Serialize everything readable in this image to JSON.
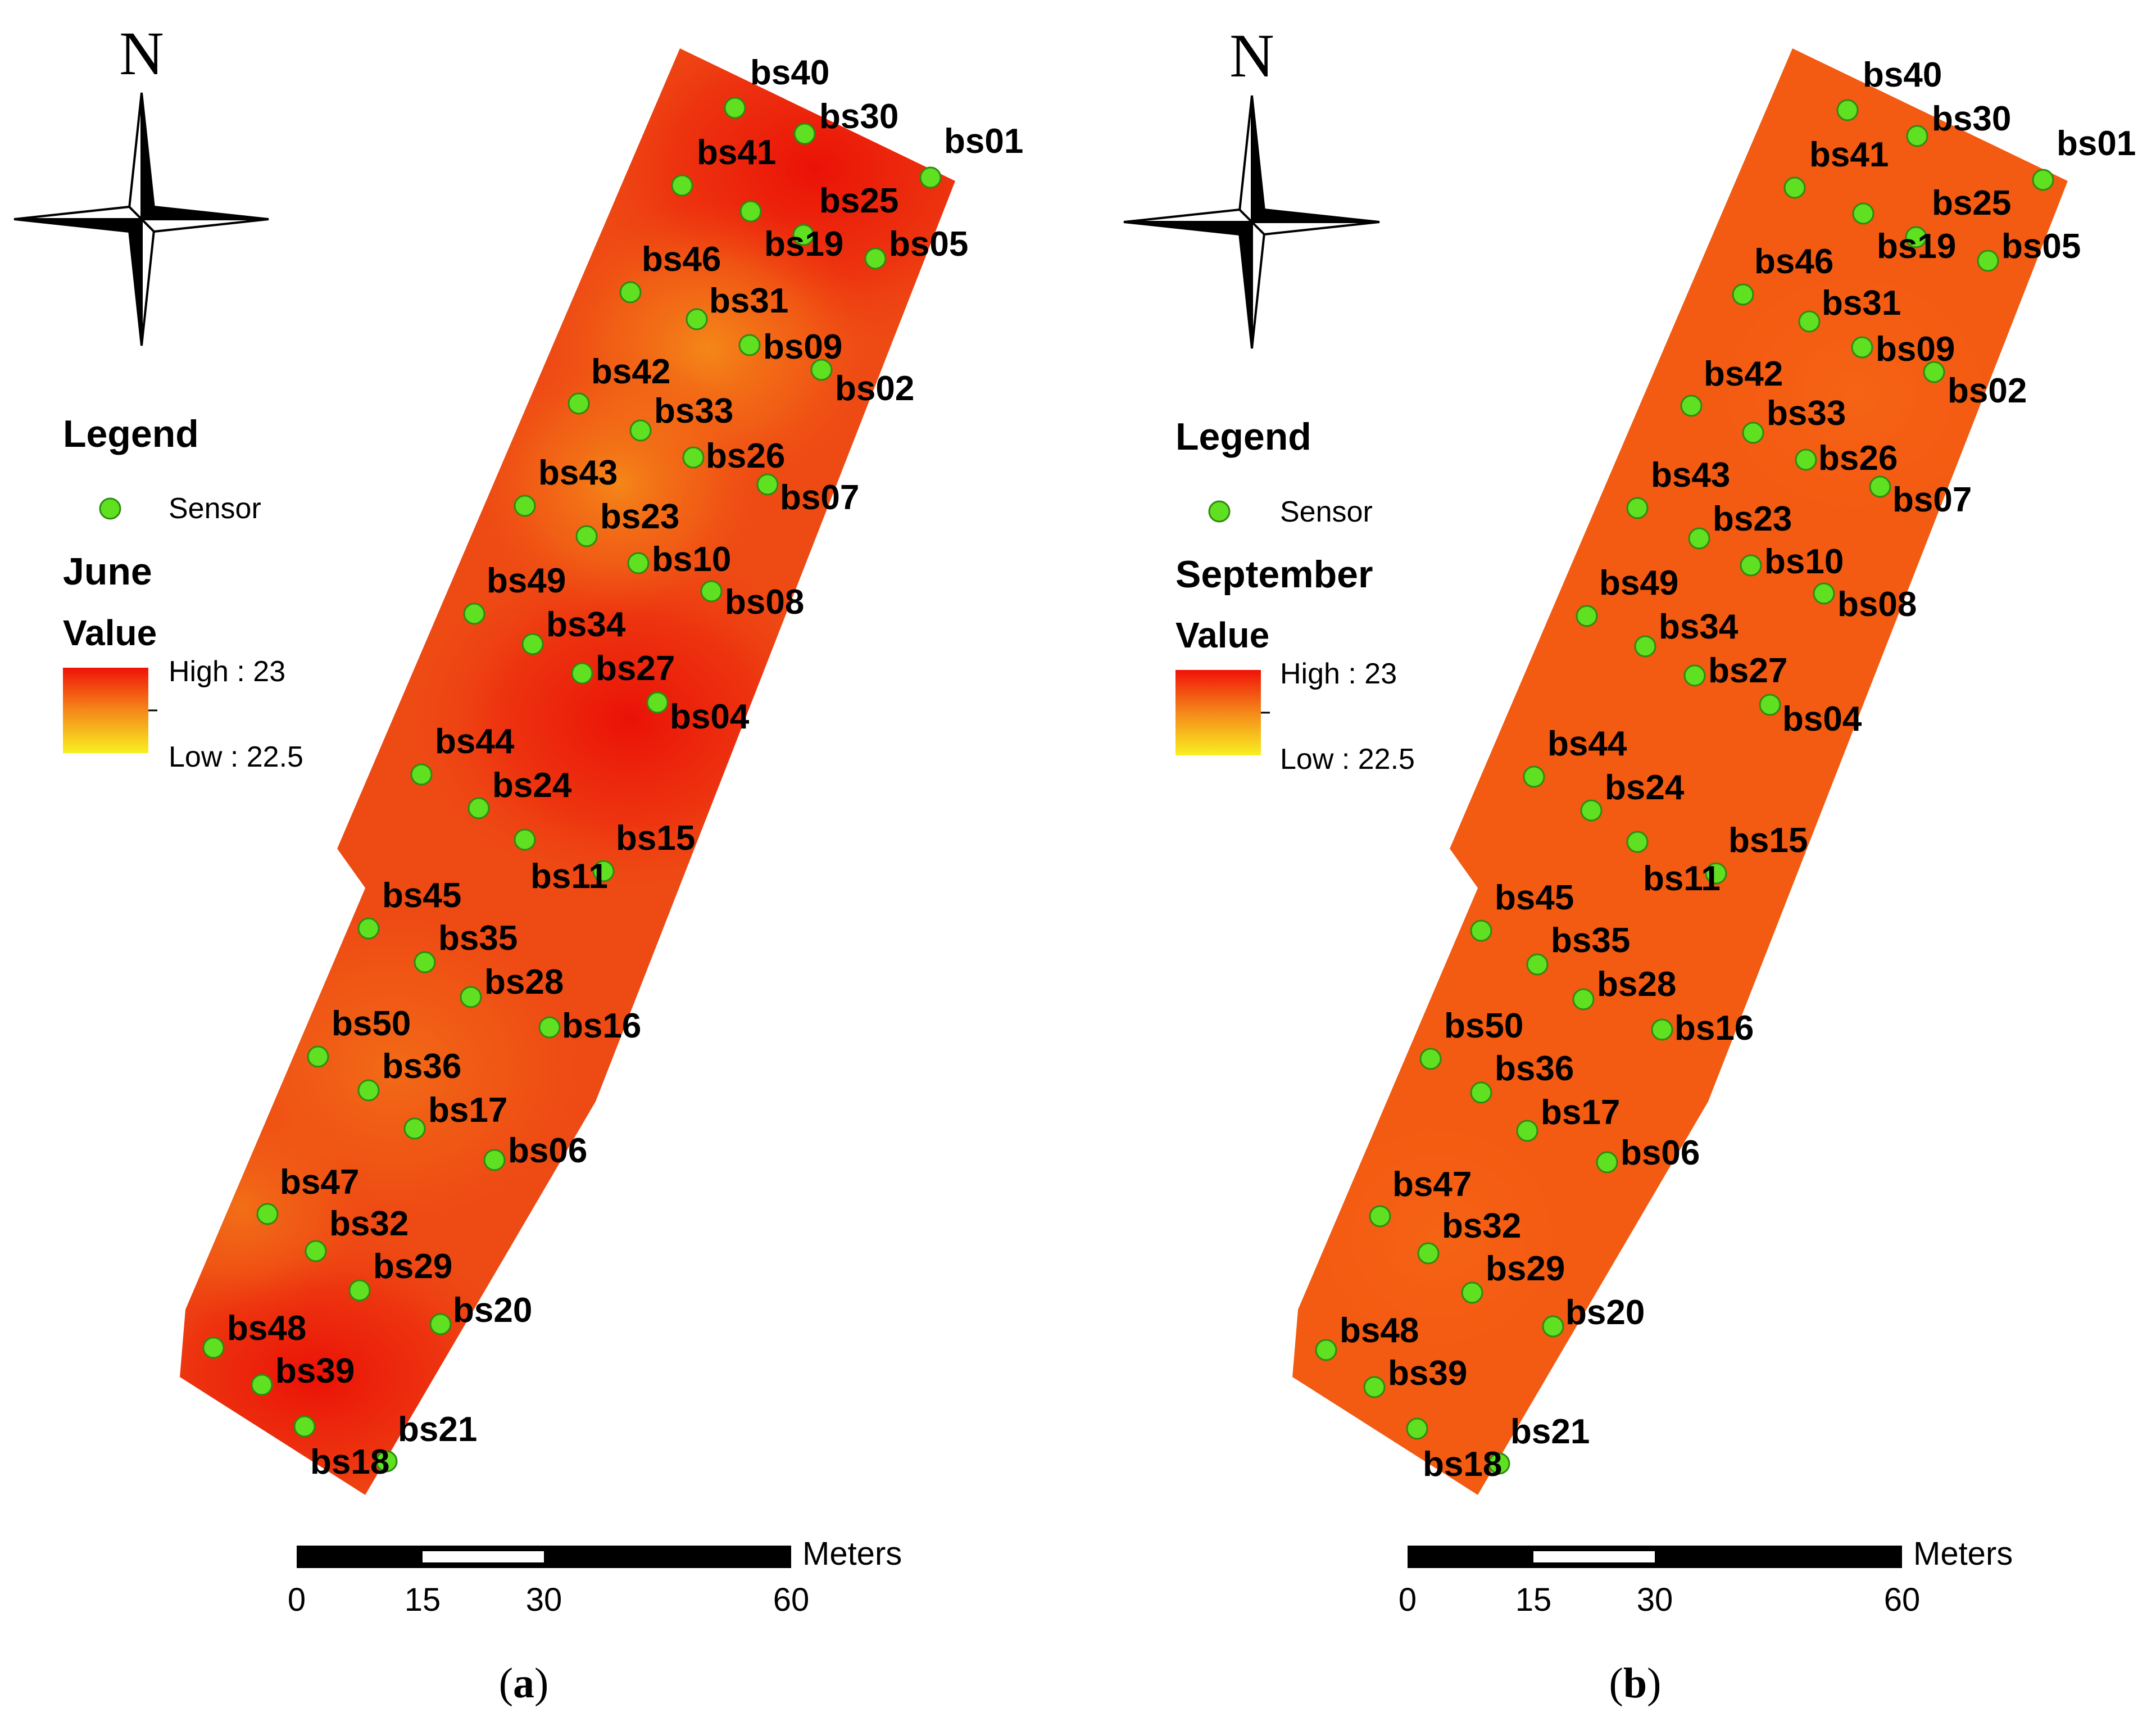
{
  "panels": [
    {
      "id": "a",
      "caption_letter": "a",
      "legend": {
        "title": "Legend",
        "sensor_label": "Sensor",
        "month": "June",
        "value_label": "Value",
        "high_label": "High : 23",
        "low_label": "Low : 22.5"
      },
      "scale_bar": {
        "unit": "Meters",
        "ticks": [
          "0",
          "15",
          "30",
          "60"
        ]
      },
      "north_label": "N",
      "colors": {
        "accent": "#e8230c",
        "field_base": "#ee4a14",
        "hot": "#ec1508",
        "warm": "#f07a12",
        "sensor": "#5fe021"
      }
    },
    {
      "id": "b",
      "caption_letter": "b",
      "legend": {
        "title": "Legend",
        "sensor_label": "Sensor",
        "month": "September",
        "value_label": "Value",
        "high_label": "High : 23",
        "low_label": "Low : 22.5"
      },
      "scale_bar": {
        "unit": "Meters",
        "ticks": [
          "0",
          "15",
          "30",
          "60"
        ]
      },
      "north_label": "N",
      "colors": {
        "field_base": "#f35a12",
        "sensor": "#5fe021"
      }
    }
  ],
  "sensors": [
    "bs40",
    "bs30",
    "bs01",
    "bs41",
    "bs25",
    "bs19",
    "bs05",
    "bs46",
    "bs31",
    "bs09",
    "bs02",
    "bs42",
    "bs33",
    "bs26",
    "bs07",
    "bs43",
    "bs23",
    "bs10",
    "bs08",
    "bs49",
    "bs34",
    "bs27",
    "bs04",
    "bs44",
    "bs24",
    "bs15",
    "bs11",
    "bs45",
    "bs35",
    "bs28",
    "bs16",
    "bs50",
    "bs36",
    "bs17",
    "bs06",
    "bs47",
    "bs32",
    "bs29",
    "bs20",
    "bs48",
    "bs39",
    "bs21",
    "bs18"
  ]
}
